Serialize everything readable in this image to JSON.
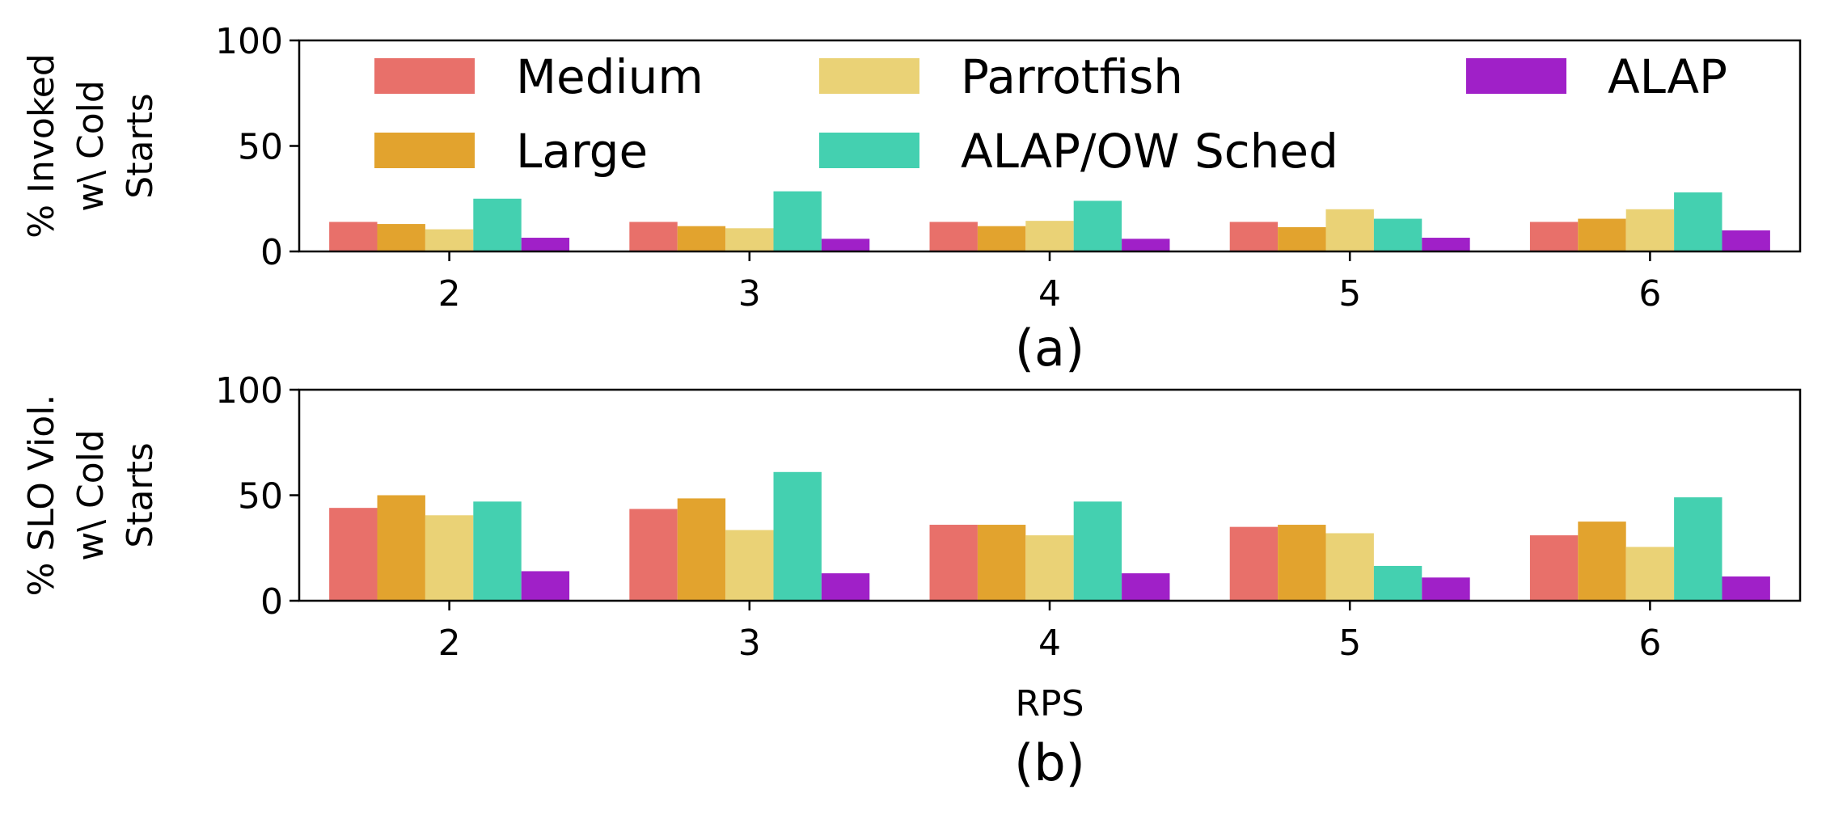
{
  "chart_data": [
    {
      "type": "bar",
      "id": "a",
      "caption": "(a)",
      "ylabel": [
        "% Invoked",
        "w\\ Cold",
        "Starts"
      ],
      "xlabel": "",
      "categories": [
        "2",
        "3",
        "4",
        "5",
        "6"
      ],
      "ylim": [
        0,
        100
      ],
      "yticks": [
        0,
        50,
        100
      ],
      "legend": {
        "position": "top",
        "columns": 3
      },
      "series": [
        {
          "name": "Medium",
          "color": "#e8706a",
          "values": [
            14,
            14,
            14,
            14,
            14
          ]
        },
        {
          "name": "Large",
          "color": "#e2a32e",
          "values": [
            13,
            12,
            12,
            11.5,
            15.5
          ]
        },
        {
          "name": "Parrotfish",
          "color": "#ead276",
          "values": [
            10.5,
            11,
            14.5,
            20,
            20
          ]
        },
        {
          "name": "ALAP/OW Sched",
          "color": "#44d0b0",
          "values": [
            25,
            28.5,
            24,
            15.5,
            28
          ]
        },
        {
          "name": "ALAP",
          "color": "#a020c8",
          "values": [
            6.5,
            6,
            6,
            6.5,
            10
          ]
        }
      ]
    },
    {
      "type": "bar",
      "id": "b",
      "caption": "(b)",
      "ylabel": [
        "% SLO Viol.",
        "w\\ Cold",
        "Starts"
      ],
      "xlabel": "RPS",
      "categories": [
        "2",
        "3",
        "4",
        "5",
        "6"
      ],
      "ylim": [
        0,
        100
      ],
      "yticks": [
        0,
        50,
        100
      ],
      "series": [
        {
          "name": "Medium",
          "color": "#e8706a",
          "values": [
            44,
            43.5,
            36,
            35,
            31
          ]
        },
        {
          "name": "Large",
          "color": "#e2a32e",
          "values": [
            50,
            48.5,
            36,
            36,
            37.5
          ]
        },
        {
          "name": "Parrotfish",
          "color": "#ead276",
          "values": [
            40.5,
            33.5,
            31,
            32,
            25.5
          ]
        },
        {
          "name": "ALAP/OW Sched",
          "color": "#44d0b0",
          "values": [
            47,
            61,
            47,
            16.5,
            49
          ]
        },
        {
          "name": "ALAP",
          "color": "#a020c8",
          "values": [
            14,
            13,
            13,
            11,
            11.5
          ]
        }
      ]
    }
  ]
}
